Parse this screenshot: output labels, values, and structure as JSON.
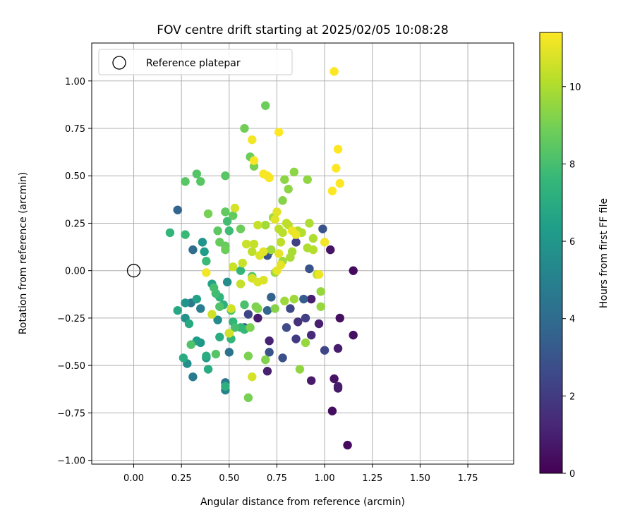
{
  "chart_data": {
    "type": "scatter",
    "title": "FOV centre drift starting at 2025/02/05 10:08:28",
    "xlabel": "Angular distance from reference (arcmin)",
    "ylabel": "Rotation from reference (arcmin)",
    "xlim": [
      -0.22,
      1.99
    ],
    "ylim": [
      -1.02,
      1.2
    ],
    "xticks": [
      0.0,
      0.25,
      0.5,
      0.75,
      1.0,
      1.25,
      1.5,
      1.75
    ],
    "xtick_labels": [
      "0.00",
      "0.25",
      "0.50",
      "0.75",
      "1.00",
      "1.25",
      "1.50",
      "1.75"
    ],
    "yticks": [
      -1.0,
      -0.75,
      -0.5,
      -0.25,
      0.0,
      0.25,
      0.5,
      0.75,
      1.0
    ],
    "ytick_labels": [
      "−1.00",
      "−0.75",
      "−0.50",
      "−0.25",
      "0.00",
      "0.25",
      "0.50",
      "0.75",
      "1.00"
    ],
    "grid": true,
    "legend_position": "top-left",
    "legend": {
      "label": "Reference platepar",
      "marker": "open-circle"
    },
    "reference_point": {
      "x": 0.0,
      "y": 0.0
    },
    "colorbar": {
      "label": "Hours from first FF file",
      "colormap": "viridis",
      "range": [
        0,
        11.4
      ],
      "ticks": [
        0,
        2,
        4,
        6,
        8,
        10
      ],
      "tick_labels": [
        "0",
        "2",
        "4",
        "6",
        "8",
        "10"
      ]
    },
    "colormap_stops": [
      "#440154",
      "#482878",
      "#3e4989",
      "#31688e",
      "#26828e",
      "#1f9e89",
      "#35b779",
      "#6ece58",
      "#b5de2b",
      "#fde725"
    ],
    "series": [
      {
        "points": [
          {
            "x": 1.12,
            "y": -0.92,
            "c": 0.3
          },
          {
            "x": 1.15,
            "y": 0.0,
            "c": 0.3
          },
          {
            "x": 1.04,
            "y": -0.74,
            "c": 0.4
          },
          {
            "x": 1.08,
            "y": -0.25,
            "c": 0.5
          },
          {
            "x": 1.03,
            "y": 0.11,
            "c": 0.6
          },
          {
            "x": 1.07,
            "y": -0.62,
            "c": 0.7
          },
          {
            "x": 1.15,
            "y": -0.34,
            "c": 0.5
          },
          {
            "x": 0.93,
            "y": -0.58,
            "c": 0.8
          },
          {
            "x": 1.05,
            "y": -0.57,
            "c": 0.6
          },
          {
            "x": 1.07,
            "y": -0.41,
            "c": 0.9
          },
          {
            "x": 0.93,
            "y": -0.15,
            "c": 0.9
          },
          {
            "x": 0.97,
            "y": -0.28,
            "c": 1.0
          },
          {
            "x": 0.7,
            "y": -0.53,
            "c": 1.0
          },
          {
            "x": 0.65,
            "y": -0.25,
            "c": 0.8
          },
          {
            "x": 0.71,
            "y": -0.37,
            "c": 1.1
          },
          {
            "x": 1.07,
            "y": -0.61,
            "c": 0.9
          },
          {
            "x": 0.93,
            "y": -0.34,
            "c": 1.4
          },
          {
            "x": 0.86,
            "y": -0.27,
            "c": 1.6
          },
          {
            "x": 0.85,
            "y": -0.36,
            "c": 2.0
          },
          {
            "x": 0.9,
            "y": -0.25,
            "c": 2.2
          },
          {
            "x": 1.0,
            "y": -0.42,
            "c": 2.4
          },
          {
            "x": 0.82,
            "y": -0.2,
            "c": 2.5
          },
          {
            "x": 0.8,
            "y": -0.3,
            "c": 2.6
          },
          {
            "x": 0.78,
            "y": -0.46,
            "c": 2.8
          },
          {
            "x": 0.71,
            "y": -0.43,
            "c": 2.9
          },
          {
            "x": 0.6,
            "y": -0.23,
            "c": 2.4
          },
          {
            "x": 0.92,
            "y": 0.01,
            "c": 2.9
          },
          {
            "x": 0.99,
            "y": 0.22,
            "c": 3.0
          },
          {
            "x": 0.85,
            "y": 0.15,
            "c": 2.2
          },
          {
            "x": 0.7,
            "y": 0.08,
            "c": 3.0
          },
          {
            "x": 0.89,
            "y": -0.15,
            "c": 3.4
          },
          {
            "x": 0.72,
            "y": -0.14,
            "c": 3.6
          },
          {
            "x": 0.58,
            "y": -0.3,
            "c": 3.7
          },
          {
            "x": 0.7,
            "y": -0.21,
            "c": 3.7
          },
          {
            "x": 0.71,
            "y": 0.1,
            "c": 3.2
          },
          {
            "x": 0.23,
            "y": 0.32,
            "c": 3.7
          },
          {
            "x": 0.31,
            "y": 0.11,
            "c": 4.0
          },
          {
            "x": 0.5,
            "y": -0.43,
            "c": 4.4
          },
          {
            "x": 0.31,
            "y": -0.56,
            "c": 4.7
          },
          {
            "x": 0.3,
            "y": -0.17,
            "c": 4.6
          },
          {
            "x": 0.35,
            "y": -0.2,
            "c": 4.8
          },
          {
            "x": 0.48,
            "y": -0.59,
            "c": 4.7
          },
          {
            "x": 0.48,
            "y": -0.63,
            "c": 5.1
          },
          {
            "x": 0.44,
            "y": -0.26,
            "c": 5.5
          },
          {
            "x": 0.49,
            "y": -0.06,
            "c": 5.6
          },
          {
            "x": 0.27,
            "y": -0.17,
            "c": 5.9
          },
          {
            "x": 0.27,
            "y": -0.25,
            "c": 5.8
          },
          {
            "x": 0.28,
            "y": -0.49,
            "c": 5.6
          },
          {
            "x": 0.38,
            "y": -0.46,
            "c": 6.0
          },
          {
            "x": 0.35,
            "y": -0.38,
            "c": 6.0
          },
          {
            "x": 0.33,
            "y": -0.37,
            "c": 6.3
          },
          {
            "x": 0.37,
            "y": 0.1,
            "c": 6.3
          },
          {
            "x": 0.36,
            "y": 0.15,
            "c": 5.9
          },
          {
            "x": 0.33,
            "y": -0.15,
            "c": 6.5
          },
          {
            "x": 0.41,
            "y": -0.07,
            "c": 6.6
          },
          {
            "x": 0.23,
            "y": -0.21,
            "c": 6.8
          },
          {
            "x": 0.29,
            "y": -0.28,
            "c": 6.9
          },
          {
            "x": 0.26,
            "y": -0.46,
            "c": 7.0
          },
          {
            "x": 0.39,
            "y": -0.52,
            "c": 7.0
          },
          {
            "x": 0.38,
            "y": -0.45,
            "c": 7.1
          },
          {
            "x": 0.45,
            "y": -0.35,
            "c": 7.1
          },
          {
            "x": 0.47,
            "y": -0.18,
            "c": 7.2
          },
          {
            "x": 0.48,
            "y": -0.61,
            "c": 7.2
          },
          {
            "x": 0.43,
            "y": -0.12,
            "c": 7.3
          },
          {
            "x": 0.45,
            "y": -0.14,
            "c": 7.4
          },
          {
            "x": 0.5,
            "y": -0.33,
            "c": 7.4
          },
          {
            "x": 0.51,
            "y": -0.36,
            "c": 7.5
          },
          {
            "x": 0.52,
            "y": -0.27,
            "c": 7.5
          },
          {
            "x": 0.19,
            "y": 0.2,
            "c": 7.5
          },
          {
            "x": 0.56,
            "y": 0.0,
            "c": 7.5
          },
          {
            "x": 0.58,
            "y": -0.31,
            "c": 7.6
          },
          {
            "x": 0.56,
            "y": -0.3,
            "c": 7.6
          },
          {
            "x": 0.27,
            "y": 0.19,
            "c": 7.7
          },
          {
            "x": 0.38,
            "y": 0.05,
            "c": 7.7
          },
          {
            "x": 0.5,
            "y": 0.21,
            "c": 7.8
          },
          {
            "x": 0.49,
            "y": 0.26,
            "c": 7.9
          },
          {
            "x": 0.43,
            "y": -0.12,
            "c": 7.9
          },
          {
            "x": 0.42,
            "y": -0.09,
            "c": 8.0
          },
          {
            "x": 0.53,
            "y": -0.3,
            "c": 8.0
          },
          {
            "x": 0.51,
            "y": -0.21,
            "c": 8.1
          },
          {
            "x": 0.58,
            "y": -0.18,
            "c": 8.1
          },
          {
            "x": 0.62,
            "y": -0.03,
            "c": 8.2
          },
          {
            "x": 0.3,
            "y": -0.39,
            "c": 8.2
          },
          {
            "x": 0.45,
            "y": -0.19,
            "c": 8.2
          },
          {
            "x": 0.43,
            "y": -0.44,
            "c": 8.3
          },
          {
            "x": 0.33,
            "y": 0.51,
            "c": 8.3
          },
          {
            "x": 0.35,
            "y": 0.47,
            "c": 8.4
          },
          {
            "x": 0.27,
            "y": 0.47,
            "c": 8.4
          },
          {
            "x": 0.48,
            "y": 0.5,
            "c": 8.4
          },
          {
            "x": 0.44,
            "y": 0.21,
            "c": 8.5
          },
          {
            "x": 0.48,
            "y": 0.31,
            "c": 8.6
          },
          {
            "x": 0.52,
            "y": 0.29,
            "c": 8.6
          },
          {
            "x": 0.45,
            "y": 0.15,
            "c": 8.7
          },
          {
            "x": 0.48,
            "y": 0.13,
            "c": 8.7
          },
          {
            "x": 0.48,
            "y": 0.11,
            "c": 8.8
          },
          {
            "x": 0.56,
            "y": 0.22,
            "c": 8.8
          },
          {
            "x": 0.61,
            "y": 0.6,
            "c": 8.8
          },
          {
            "x": 0.69,
            "y": 0.87,
            "c": 8.8
          },
          {
            "x": 0.58,
            "y": 0.75,
            "c": 8.9
          },
          {
            "x": 0.39,
            "y": 0.3,
            "c": 9.0
          },
          {
            "x": 0.63,
            "y": 0.55,
            "c": 9.0
          },
          {
            "x": 0.6,
            "y": -0.67,
            "c": 9.0
          },
          {
            "x": 0.61,
            "y": -0.3,
            "c": 9.1
          },
          {
            "x": 0.6,
            "y": -0.45,
            "c": 9.1
          },
          {
            "x": 0.64,
            "y": -0.19,
            "c": 9.1
          },
          {
            "x": 0.65,
            "y": -0.2,
            "c": 9.2
          },
          {
            "x": 0.69,
            "y": -0.47,
            "c": 9.2
          },
          {
            "x": 0.74,
            "y": -0.2,
            "c": 9.3
          },
          {
            "x": 0.78,
            "y": 0.37,
            "c": 9.3
          },
          {
            "x": 0.81,
            "y": 0.43,
            "c": 9.4
          },
          {
            "x": 0.79,
            "y": 0.48,
            "c": 9.4
          },
          {
            "x": 0.84,
            "y": 0.52,
            "c": 9.4
          },
          {
            "x": 0.91,
            "y": 0.48,
            "c": 9.5
          },
          {
            "x": 0.87,
            "y": -0.52,
            "c": 9.5
          },
          {
            "x": 0.9,
            "y": -0.38,
            "c": 9.6
          },
          {
            "x": 0.98,
            "y": -0.11,
            "c": 9.6
          },
          {
            "x": 0.98,
            "y": -0.19,
            "c": 9.6
          },
          {
            "x": 0.79,
            "y": -0.16,
            "c": 9.7
          },
          {
            "x": 0.84,
            "y": -0.15,
            "c": 9.7
          },
          {
            "x": 0.74,
            "y": -0.01,
            "c": 9.7
          },
          {
            "x": 0.72,
            "y": 0.11,
            "c": 9.8
          },
          {
            "x": 0.73,
            "y": 0.28,
            "c": 9.8
          },
          {
            "x": 0.69,
            "y": 0.24,
            "c": 9.8
          },
          {
            "x": 0.78,
            "y": 0.05,
            "c": 9.8
          },
          {
            "x": 0.82,
            "y": 0.07,
            "c": 9.9
          },
          {
            "x": 0.83,
            "y": 0.1,
            "c": 9.9
          },
          {
            "x": 0.91,
            "y": 0.12,
            "c": 10.0
          },
          {
            "x": 0.92,
            "y": 0.25,
            "c": 10.0
          },
          {
            "x": 0.94,
            "y": 0.17,
            "c": 10.0
          },
          {
            "x": 0.86,
            "y": 0.21,
            "c": 10.1
          },
          {
            "x": 0.88,
            "y": 0.2,
            "c": 10.1
          },
          {
            "x": 0.94,
            "y": 0.11,
            "c": 10.1
          },
          {
            "x": 0.96,
            "y": -0.02,
            "c": 10.2
          },
          {
            "x": 0.76,
            "y": 0.22,
            "c": 10.2
          },
          {
            "x": 0.78,
            "y": 0.2,
            "c": 10.2
          },
          {
            "x": 0.8,
            "y": 0.25,
            "c": 10.3
          },
          {
            "x": 0.81,
            "y": 0.24,
            "c": 10.3
          },
          {
            "x": 0.77,
            "y": 0.15,
            "c": 10.3
          },
          {
            "x": 0.62,
            "y": 0.1,
            "c": 10.3
          },
          {
            "x": 0.63,
            "y": 0.14,
            "c": 10.4
          },
          {
            "x": 0.65,
            "y": 0.24,
            "c": 10.4
          },
          {
            "x": 0.56,
            "y": -0.07,
            "c": 10.4
          },
          {
            "x": 0.57,
            "y": 0.04,
            "c": 10.5
          },
          {
            "x": 0.59,
            "y": 0.14,
            "c": 10.5
          },
          {
            "x": 0.52,
            "y": 0.02,
            "c": 10.5
          },
          {
            "x": 0.51,
            "y": -0.2,
            "c": 10.6
          },
          {
            "x": 0.5,
            "y": -0.33,
            "c": 10.6
          },
          {
            "x": 0.41,
            "y": -0.23,
            "c": 10.6
          },
          {
            "x": 0.53,
            "y": 0.33,
            "c": 10.7
          },
          {
            "x": 0.62,
            "y": -0.56,
            "c": 10.7
          },
          {
            "x": 0.62,
            "y": -0.04,
            "c": 10.7
          },
          {
            "x": 0.65,
            "y": -0.06,
            "c": 10.8
          },
          {
            "x": 0.68,
            "y": -0.05,
            "c": 10.8
          },
          {
            "x": 0.66,
            "y": 0.08,
            "c": 10.8
          },
          {
            "x": 0.68,
            "y": 0.1,
            "c": 10.9
          },
          {
            "x": 0.75,
            "y": 0.31,
            "c": 10.9
          },
          {
            "x": 0.74,
            "y": 0.27,
            "c": 10.9
          },
          {
            "x": 0.76,
            "y": 0.09,
            "c": 11.0
          },
          {
            "x": 0.77,
            "y": 0.03,
            "c": 11.0
          },
          {
            "x": 0.75,
            "y": 0.0,
            "c": 11.0
          },
          {
            "x": 0.83,
            "y": 0.21,
            "c": 11.1
          },
          {
            "x": 0.85,
            "y": 0.19,
            "c": 11.1
          },
          {
            "x": 0.97,
            "y": -0.02,
            "c": 11.1
          },
          {
            "x": 1.0,
            "y": 0.15,
            "c": 11.2
          },
          {
            "x": 0.38,
            "y": -0.01,
            "c": 11.2
          },
          {
            "x": 0.62,
            "y": 0.69,
            "c": 11.2
          },
          {
            "x": 0.63,
            "y": 0.58,
            "c": 11.3
          },
          {
            "x": 0.68,
            "y": 0.51,
            "c": 11.3
          },
          {
            "x": 0.7,
            "y": 0.5,
            "c": 11.3
          },
          {
            "x": 0.71,
            "y": 0.49,
            "c": 11.3
          },
          {
            "x": 0.76,
            "y": 0.73,
            "c": 11.4
          },
          {
            "x": 1.04,
            "y": 0.42,
            "c": 11.4
          },
          {
            "x": 1.06,
            "y": 0.54,
            "c": 11.4
          },
          {
            "x": 1.07,
            "y": 0.64,
            "c": 11.4
          },
          {
            "x": 1.08,
            "y": 0.46,
            "c": 11.4
          },
          {
            "x": 1.05,
            "y": 1.05,
            "c": 11.4
          }
        ]
      }
    ]
  }
}
